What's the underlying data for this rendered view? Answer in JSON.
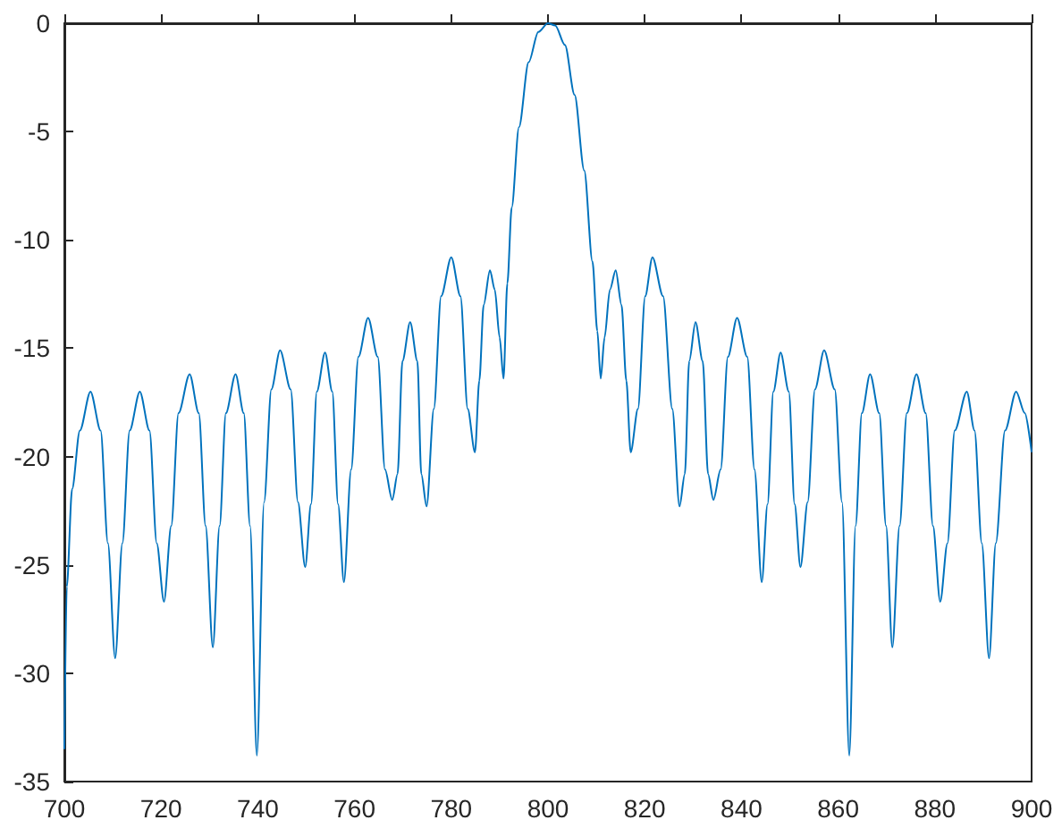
{
  "chart_data": {
    "type": "line",
    "color": "#0072bd",
    "marker": "none",
    "line_style": "solid",
    "xlim": [
      700,
      900
    ],
    "xticks": [
      700,
      720,
      740,
      760,
      780,
      800,
      820,
      840,
      860,
      880,
      900
    ],
    "ylim": [
      -35,
      0
    ],
    "yticks": [
      -35,
      -30,
      -25,
      -20,
      -15,
      -10,
      -5,
      0
    ],
    "x": [
      700,
      700.5,
      701.6,
      703.2,
      705.4,
      707.5,
      709.0,
      710.5,
      712.0,
      713.5,
      715.6,
      717.6,
      719.1,
      720.6,
      722.1,
      723.6,
      725.9,
      727.8,
      729.2,
      730.7,
      732.1,
      733.4,
      735.4,
      737.1,
      738.4,
      739.8,
      741.3,
      742.8,
      744.6,
      746.8,
      748.3,
      749.8,
      751.0,
      752.2,
      753.9,
      755.4,
      756.6,
      757.8,
      759.3,
      760.8,
      762.8,
      764.8,
      766.3,
      767.8,
      768.9,
      769.9,
      771.5,
      773.0,
      773.8,
      774.9,
      776.4,
      777.9,
      780.0,
      781.9,
      783.4,
      784.9,
      785.8,
      786.7,
      788.0,
      789.0,
      790.0,
      790.8,
      791.6,
      792.5,
      794,
      796,
      798,
      800,
      801.5,
      803.5,
      805.5,
      807.5,
      809.2,
      810.2,
      810.9,
      811.7,
      812.8,
      814.0,
      815.2,
      816.2,
      817.1,
      818.6,
      820.1,
      821.6,
      823.8,
      825.7,
      827.2,
      828.3,
      829.2,
      830.5,
      832.0,
      833.1,
      834.2,
      835.7,
      837.2,
      839.1,
      841.2,
      842.7,
      844.2,
      845.4,
      846.6,
      848.1,
      849.8,
      851.0,
      852.2,
      853.7,
      855.2,
      857.1,
      859.3,
      860.8,
      862.3,
      863.6,
      864.9,
      866.6,
      868.5,
      869.9,
      871.2,
      872.7,
      874.2,
      876.2,
      878.1,
      879.6,
      881.1,
      882.6,
      884.1,
      886.6,
      888.2,
      889.7,
      891.2,
      892.6,
      894.5,
      896.8,
      898.6,
      900
    ],
    "values": [
      -33.5,
      -26,
      -21.5,
      -18.8,
      -17.0,
      -18.8,
      -24,
      -29.3,
      -24,
      -18.8,
      -17.0,
      -18.8,
      -24,
      -26.7,
      -23.2,
      -18,
      -16.2,
      -18,
      -23.2,
      -28.8,
      -23.2,
      -18,
      -16.2,
      -18,
      -23.2,
      -33.8,
      -22.1,
      -16.9,
      -15.1,
      -16.9,
      -22.1,
      -25.1,
      -22.2,
      -17,
      -15.2,
      -17,
      -22.2,
      -25.8,
      -20.6,
      -15.4,
      -13.6,
      -15.4,
      -20.6,
      -22.0,
      -20.8,
      -15.6,
      -13.8,
      -15.6,
      -20.8,
      -22.3,
      -17.8,
      -12.6,
      -10.8,
      -12.6,
      -17.8,
      -19.8,
      -16.5,
      -13,
      -11.4,
      -12.3,
      -14.5,
      -16.4,
      -12,
      -8.5,
      -4.8,
      -1.8,
      -0.4,
      0,
      -0.1,
      -1,
      -3.3,
      -6.8,
      -11,
      -14.2,
      -16.4,
      -14.5,
      -12.3,
      -11.4,
      -13,
      -16.5,
      -19.8,
      -17.8,
      -12.6,
      -10.8,
      -12.6,
      -17.8,
      -22.3,
      -20.8,
      -15.6,
      -13.8,
      -15.6,
      -20.8,
      -22.0,
      -20.6,
      -15.4,
      -13.6,
      -15.4,
      -20.6,
      -25.8,
      -22.2,
      -17,
      -15.2,
      -17,
      -22.2,
      -25.1,
      -22.1,
      -16.9,
      -15.1,
      -16.9,
      -22.1,
      -33.8,
      -23.2,
      -18,
      -16.2,
      -18,
      -23.2,
      -28.8,
      -23.2,
      -18,
      -16.2,
      -18,
      -23.2,
      -26.7,
      -24,
      -18.8,
      -17,
      -18.8,
      -24,
      -29.3,
      -24,
      -18.8,
      -17,
      -18,
      -19.8
    ]
  }
}
